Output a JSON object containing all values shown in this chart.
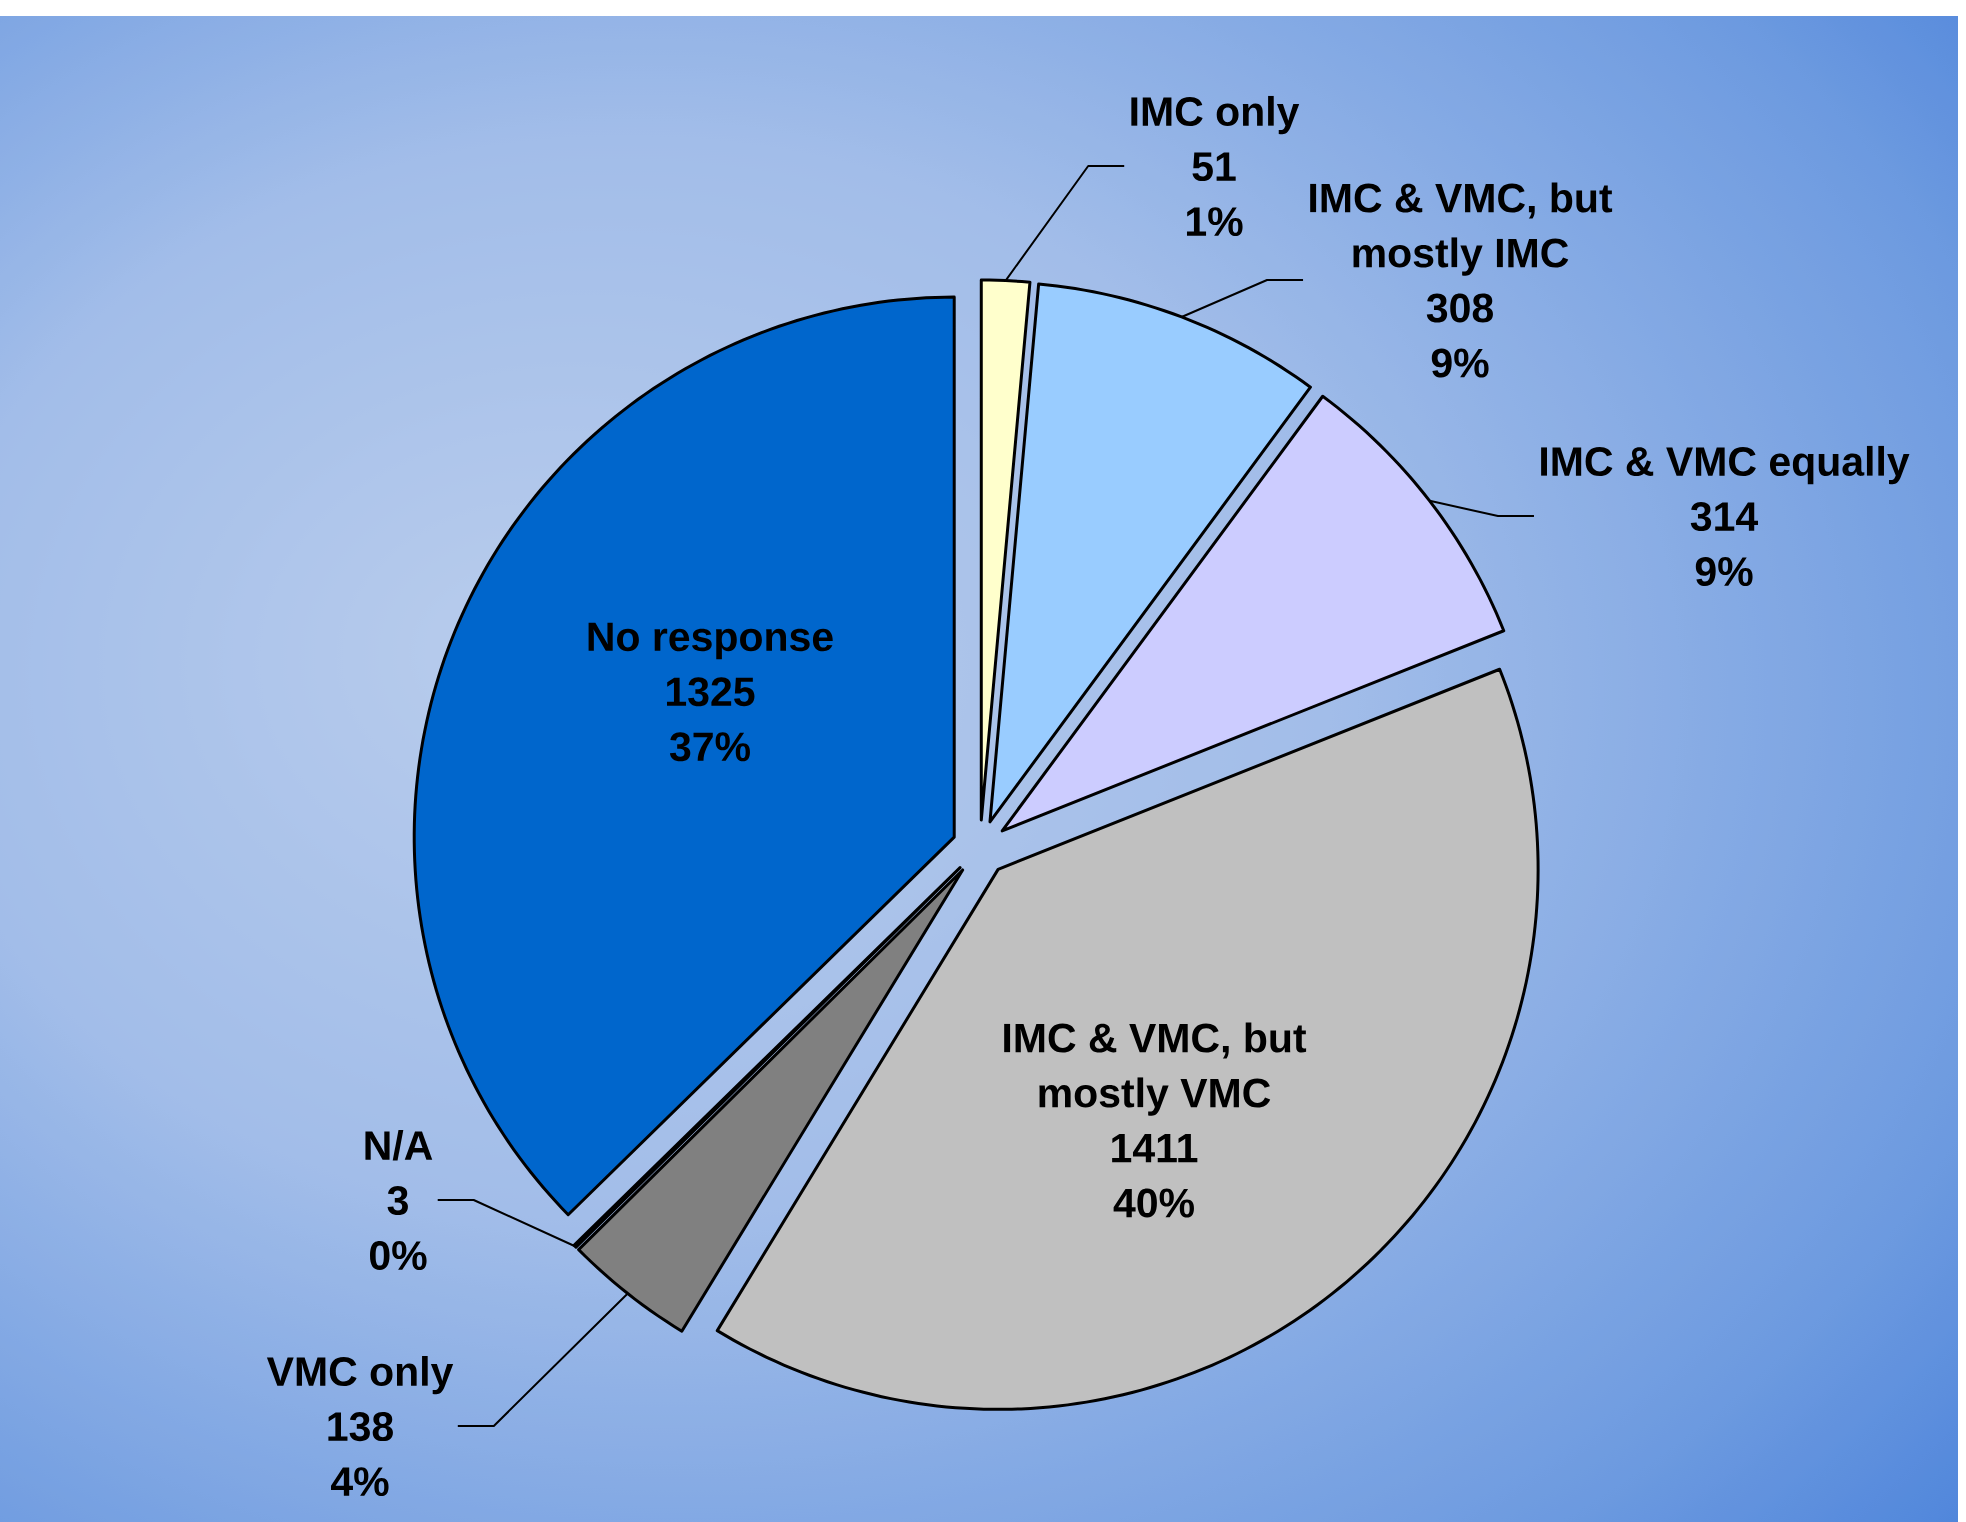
{
  "chart_data": {
    "type": "pie",
    "categories": [
      "IMC only",
      "IMC & VMC, but mostly IMC",
      "IMC & VMC equally",
      "IMC & VMC, but mostly VMC",
      "VMC only",
      "N/A",
      "No response"
    ],
    "values": [
      51,
      308,
      314,
      1411,
      138,
      3,
      1325
    ],
    "colors": [
      "#ffffcc",
      "#99ccff",
      "#ccccff",
      "#c0c0c0",
      "#808080",
      "#333333",
      "#0066cc"
    ],
    "value_labels": [
      "51 1%",
      "308 9%",
      "314 9%",
      "1411 40%",
      "138 4%",
      "3 0%",
      "1325 37%"
    ]
  }
}
